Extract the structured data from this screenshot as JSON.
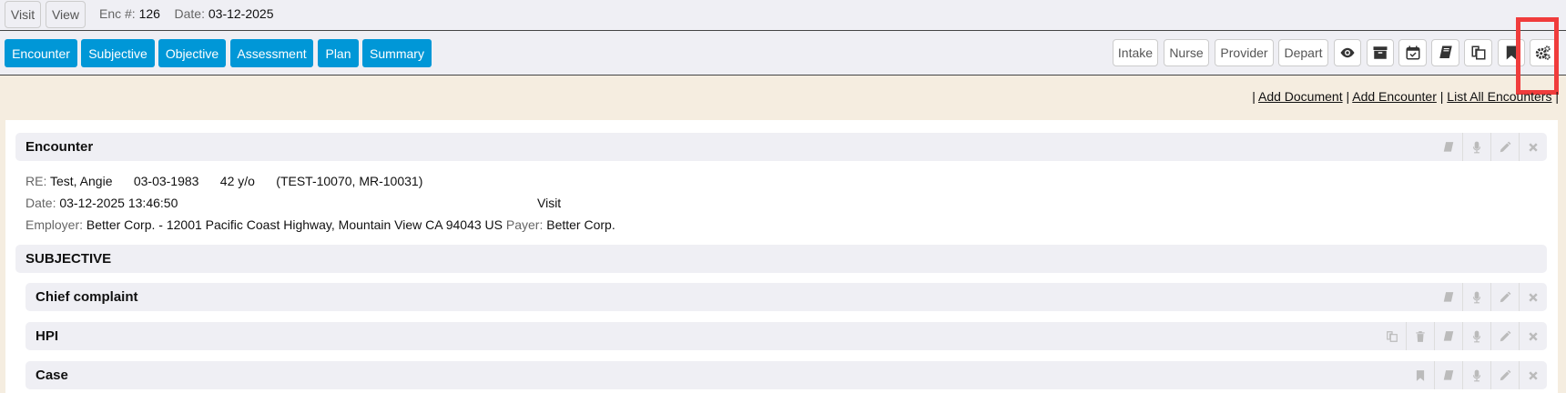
{
  "top": {
    "visit": "Visit",
    "view": "View",
    "enc_label": "Enc #:",
    "enc_value": "126",
    "date_label": "Date:",
    "date_value": "03-12-2025"
  },
  "tabs": [
    "Encounter",
    "Subjective",
    "Objective",
    "Assessment",
    "Plan",
    "Summary"
  ],
  "right_buttons": [
    "Intake",
    "Nurse",
    "Provider",
    "Depart"
  ],
  "right_icons": [
    "eye-icon",
    "archive-icon",
    "calendar-check-icon",
    "book-icon",
    "copy-icon",
    "bookmark-icon",
    "gears-icon"
  ],
  "links": {
    "add_document": "Add Document",
    "add_encounter": "Add Encounter",
    "list_all": "List All Encounters",
    "sep": "|"
  },
  "encounter": {
    "title": "Encounter",
    "re_label": "RE:",
    "name": "Test, Angie",
    "dob": "03-03-1983",
    "age": "42 y/o",
    "ids": "(TEST-10070, MR-10031)",
    "date_label": "Date:",
    "date": "03-12-2025 13:46:50",
    "type": "Visit",
    "employer_label": "Employer:",
    "employer": "Better Corp. - 12001 Pacific Coast Highway, Mountain View CA 94043 US",
    "payer_label": "Payer:",
    "payer": "Better Corp."
  },
  "subjective": {
    "title": "SUBJECTIVE",
    "sections": [
      {
        "title": "Chief complaint"
      },
      {
        "title": "HPI"
      },
      {
        "title": "Case"
      }
    ]
  },
  "colors": {
    "tab": "#0097d7",
    "highlight": "#f03c3c",
    "background": "#f5ede0"
  }
}
